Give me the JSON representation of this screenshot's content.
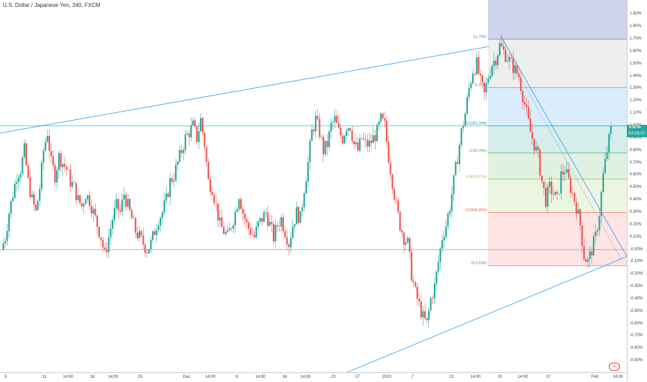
{
  "title": "U.S. Dollar / Japanese Yen, 240, FXCM",
  "colors": {
    "up": "#26a69a",
    "down": "#ef5350",
    "trendline": "#2196f3",
    "fib_top_zone": "#9fa8da",
    "fib_1_zone": "#e0e0e0",
    "fib_0786_zone": "#bbdefb",
    "fib_0618_zone": "#b2dfdb",
    "fib_05_zone": "#c8e6c9",
    "fib_0382_zone": "#dcedc8",
    "fib_0236_zone": "#ffcdd2",
    "fib_text_0618": "#009688",
    "fib_text_05": "#4caf50",
    "fib_text_0382": "#8bc34a",
    "fib_text_0236": "#f44336",
    "fib_text_neutral": "#787b86"
  },
  "price_axis": [
    "1.90%",
    "1.80%",
    "1.70%",
    "1.60%",
    "1.50%",
    "1.40%",
    "1.30%",
    "1.20%",
    "1.10%",
    "1.00%",
    "0.90%",
    "0.80%",
    "0.70%",
    "0.60%",
    "0.50%",
    "0.40%",
    "0.30%",
    "0.20%",
    "0.10%",
    "-0.00%",
    "-0.10%",
    "-0.20%",
    "-0.30%",
    "-0.40%",
    "-0.50%",
    "-0.60%",
    "-0.70%",
    "-0.80%",
    "-0.90%"
  ],
  "time_axis": [
    "5",
    "11",
    "14:00",
    "18",
    "14:00",
    "25",
    "Dec",
    "14:00",
    "9",
    "14:00",
    "16",
    "14:00",
    "23",
    "27",
    "2020",
    "7",
    "13",
    "14:00",
    "20",
    "14:00",
    "27",
    "Feb",
    "14:00"
  ],
  "last_price": {
    "label": "0.97%",
    "countdown": "02:03:07"
  },
  "reset_label": "A",
  "chart_data": {
    "type": "candlestick",
    "title": "U.S. Dollar / Japanese Yen, 240, FXCM",
    "y_unit": "%",
    "ylim": [
      -1.0,
      2.0
    ],
    "x_labels": [
      "5",
      "11",
      "14:00",
      "18",
      "14:00",
      "25",
      "Dec",
      "14:00",
      "9",
      "14:00",
      "16",
      "14:00",
      "23",
      "27",
      "2020",
      "7",
      "13",
      "14:00",
      "20",
      "14:00",
      "27",
      "Feb",
      "14:00"
    ],
    "y_labels": [
      "1.90%",
      "1.80%",
      "1.70%",
      "1.60%",
      "1.50%",
      "1.40%",
      "1.30%",
      "1.20%",
      "1.10%",
      "1.00%",
      "0.90%",
      "0.80%",
      "0.70%",
      "0.60%",
      "0.50%",
      "0.40%",
      "0.30%",
      "0.20%",
      "0.10%",
      "-0.00%",
      "-0.10%",
      "-0.20%",
      "-0.30%",
      "-0.40%",
      "-0.50%",
      "-0.60%",
      "-0.70%",
      "-0.80%",
      "-0.90%"
    ],
    "close_path": [
      0.0,
      0.1,
      0.3,
      0.45,
      0.6,
      0.65,
      0.8,
      0.55,
      0.4,
      0.3,
      0.5,
      0.8,
      0.95,
      0.7,
      0.6,
      0.75,
      0.7,
      0.65,
      0.55,
      0.5,
      0.4,
      0.35,
      0.45,
      0.4,
      0.3,
      0.2,
      0.1,
      -0.05,
      0.1,
      0.25,
      0.35,
      0.3,
      0.45,
      0.35,
      0.25,
      0.15,
      0.1,
      0.05,
      0.0,
      0.05,
      0.15,
      0.25,
      0.3,
      0.4,
      0.55,
      0.6,
      0.7,
      0.8,
      0.9,
      0.95,
      1.0,
      0.9,
      1.05,
      0.85,
      0.55,
      0.5,
      0.35,
      0.2,
      0.15,
      0.1,
      0.2,
      0.3,
      0.45,
      0.3,
      0.2,
      0.15,
      0.1,
      0.2,
      0.25,
      0.3,
      0.2,
      0.1,
      0.2,
      0.25,
      0.15,
      0.05,
      0.2,
      0.3,
      0.25,
      0.5,
      0.7,
      0.95,
      1.05,
      0.95,
      0.8,
      0.85,
      1.0,
      1.05,
      0.95,
      0.9,
      1.0,
      1.0,
      0.85,
      0.8,
      0.9,
      0.85,
      0.85,
      0.9,
      0.95,
      1.05,
      1.0,
      0.75,
      0.55,
      0.35,
      0.2,
      0.1,
      0.05,
      -0.2,
      -0.35,
      -0.45,
      -0.55,
      -0.6,
      -0.4,
      -0.3,
      -0.1,
      0.1,
      0.2,
      0.35,
      0.55,
      0.75,
      0.95,
      1.1,
      1.3,
      1.45,
      1.5,
      1.35,
      1.25,
      1.4,
      1.5,
      1.55,
      1.65,
      1.6,
      1.55,
      1.5,
      1.45,
      1.4,
      1.25,
      1.1,
      0.95,
      0.85,
      0.75,
      0.55,
      0.4,
      0.5,
      0.45,
      0.4,
      0.6,
      0.65,
      0.55,
      0.45,
      0.35,
      0.2,
      -0.05,
      -0.1,
      0.0,
      0.1,
      0.3,
      0.6,
      0.8,
      0.97
    ],
    "fibonacci": [
      {
        "level": "1",
        "value": 1.7,
        "label": "1(1.70%)"
      },
      {
        "level": "0.786",
        "value": 1.31,
        "label": "(1.31%)"
      },
      {
        "level": "0.618",
        "value": 1.0,
        "label": "0.618(1.00%)"
      },
      {
        "level": "0.5",
        "value": 0.78,
        "label": "0.5(0.78%)"
      },
      {
        "level": "0.382",
        "value": 0.57,
        "label": "0.382(0.57%)"
      },
      {
        "level": "0.236",
        "value": 0.3,
        "label": "0.236(0.30%)"
      },
      {
        "level": "0",
        "value": -0.13,
        "label": "0(-0.13%)"
      }
    ],
    "horizontal_lines": [
      0.0,
      0.97
    ],
    "trendlines": [
      "rising resistance line",
      "rising support line",
      "falling trendline from top"
    ]
  }
}
